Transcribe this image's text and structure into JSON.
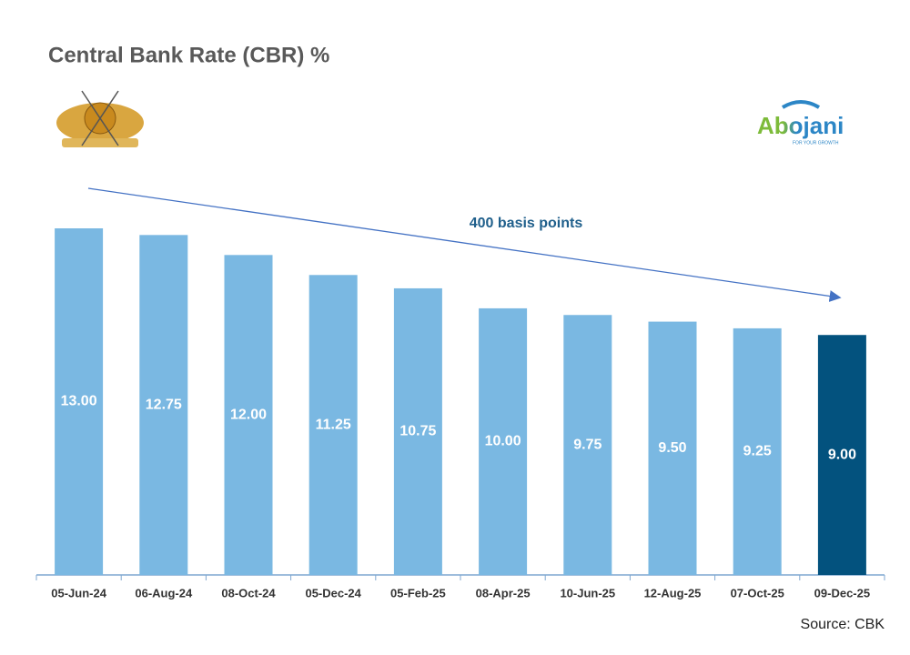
{
  "chart_data": {
    "type": "bar",
    "title": "Central Bank Rate (CBR) %",
    "categories": [
      "05-Jun-24",
      "06-Aug-24",
      "08-Oct-24",
      "05-Dec-24",
      "05-Feb-25",
      "08-Apr-25",
      "10-Jun-25",
      "12-Aug-25",
      "07-Oct-25",
      "09-Dec-25"
    ],
    "values": [
      13,
      12.75,
      12,
      11.25,
      10.75,
      10,
      9.75,
      9.5,
      9.25,
      9
    ],
    "value_labels": [
      "13.00",
      "12.75",
      "12.00",
      "11.25",
      "10.75",
      "10.00",
      "9.75",
      "9.50",
      "9.25",
      "9.00"
    ],
    "colors": [
      "#7ab8e2",
      "#7ab8e2",
      "#7ab8e2",
      "#7ab8e2",
      "#7ab8e2",
      "#7ab8e2",
      "#7ab8e2",
      "#7ab8e2",
      "#7ab8e2",
      "#03527e"
    ],
    "ylim": [
      0,
      13
    ],
    "annotation": "400 basis points",
    "source": "Source: CBK",
    "logo": {
      "text": "Abojani",
      "tagline": "FOR YOUR GROWTH"
    }
  }
}
